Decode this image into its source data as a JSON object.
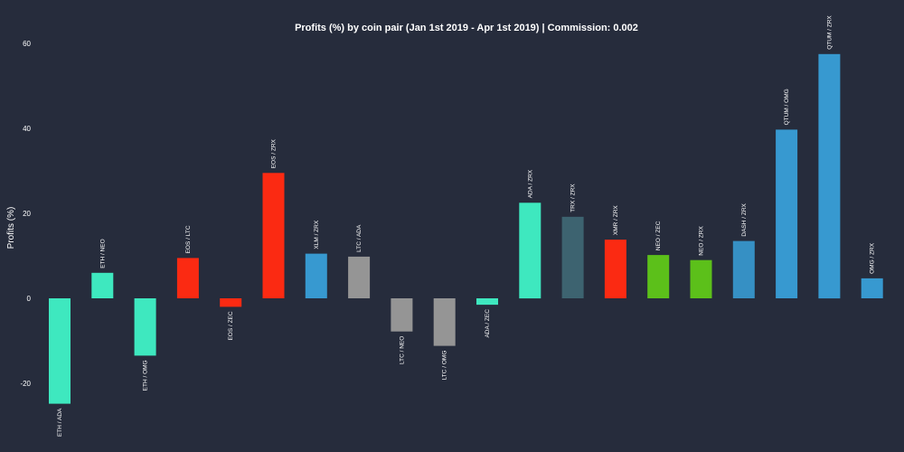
{
  "chart_data": {
    "type": "bar",
    "title": "Profits (%) by coin pair (Jan 1st 2019 - Apr 1st 2019) | Commission: 0.002",
    "xlabel": "",
    "ylabel": "Profits (%)",
    "ylim": [
      -25,
      60
    ],
    "yticks": [
      -20,
      0,
      20,
      40,
      60
    ],
    "grid": false,
    "categories": [
      "ETH / ADA",
      "ETH / NEO",
      "ETH / OMG",
      "EOS / LTC",
      "EOS / ZEC",
      "EOS / ZRX",
      "XLM / ZRX",
      "LTC / ADA",
      "LTC / NEO",
      "LTC / OMG",
      "ADA / ZEC",
      "ADA / ZRX",
      "TRX / ZRX",
      "XMR / ZRX",
      "NEO / ZEC",
      "NEO / ZRX",
      "DASH / ZRX",
      "QTUM / OMG",
      "QTUM / ZRX",
      "OMG / ZRX"
    ],
    "values": [
      -24.8,
      6.0,
      -13.5,
      9.5,
      -2.0,
      29.5,
      10.5,
      9.8,
      -7.8,
      -11.2,
      -1.5,
      22.5,
      19.2,
      13.8,
      10.2,
      9.0,
      13.5,
      39.7,
      57.5,
      4.7
    ],
    "colors": [
      "#3ee8bf",
      "#3ee8bf",
      "#3ee8bf",
      "#fb2a12",
      "#fb2a12",
      "#fb2a12",
      "#3799d0",
      "#959595",
      "#959595",
      "#959595",
      "#3ee8bf",
      "#3ee8bf",
      "#3d6370",
      "#fb2a12",
      "#5cc01a",
      "#5cc01a",
      "#3690c4",
      "#3799d0",
      "#3799d0",
      "#3799d0"
    ]
  }
}
